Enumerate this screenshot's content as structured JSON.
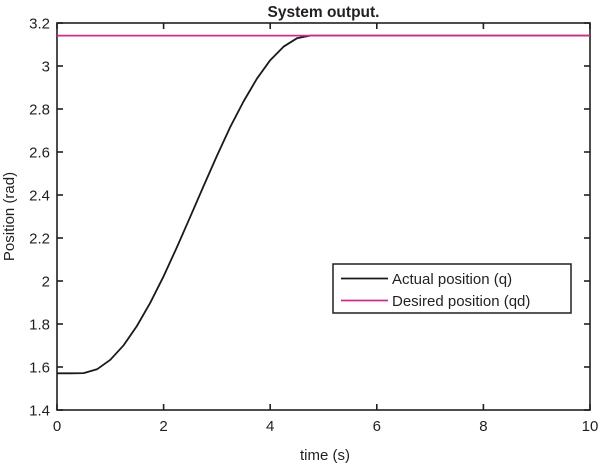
{
  "figure": {
    "background": "#ffffff",
    "axis_color": "#231f20"
  },
  "chart_data": {
    "type": "line",
    "title": "System output.",
    "xlabel": "time (s)",
    "ylabel": "Position (rad)",
    "xlim": [
      0,
      10
    ],
    "ylim": [
      1.4,
      3.2
    ],
    "xticks": [
      "0",
      "2",
      "4",
      "6",
      "8",
      "10"
    ],
    "yticks": [
      "1.4",
      "1.6",
      "1.8",
      "2",
      "2.2",
      "2.4",
      "2.6",
      "2.8",
      "3",
      "3.2"
    ],
    "grid": false,
    "legend": {
      "position": "middle-right",
      "border_color": "#231f20",
      "entries": [
        "Actual position (q)",
        "Desired position (qd)"
      ]
    },
    "series": [
      {
        "name": "Actual position (q)",
        "color": "#1a1a1a",
        "x": [
          0,
          0.25,
          0.5,
          0.75,
          1,
          1.25,
          1.5,
          1.75,
          2,
          2.25,
          2.5,
          2.75,
          3,
          3.25,
          3.5,
          3.75,
          4,
          4.25,
          4.5,
          4.75,
          5,
          5.5,
          6,
          6.5,
          7,
          7.5,
          8,
          8.5,
          9,
          9.5,
          10
        ],
        "y": [
          1.5708,
          1.5708,
          1.5715,
          1.5895,
          1.6335,
          1.701,
          1.7907,
          1.899,
          2.0218,
          2.157,
          2.2993,
          2.442,
          2.582,
          2.716,
          2.835,
          2.941,
          3.027,
          3.09,
          3.129,
          3.1416,
          3.1416,
          3.1416,
          3.1416,
          3.1416,
          3.1416,
          3.1416,
          3.1416,
          3.1416,
          3.1416,
          3.1416,
          3.1416
        ]
      },
      {
        "name": "Desired position (qd)",
        "color": "#d12a92",
        "x": [
          0,
          10
        ],
        "y": [
          3.1416,
          3.1416
        ]
      }
    ]
  }
}
